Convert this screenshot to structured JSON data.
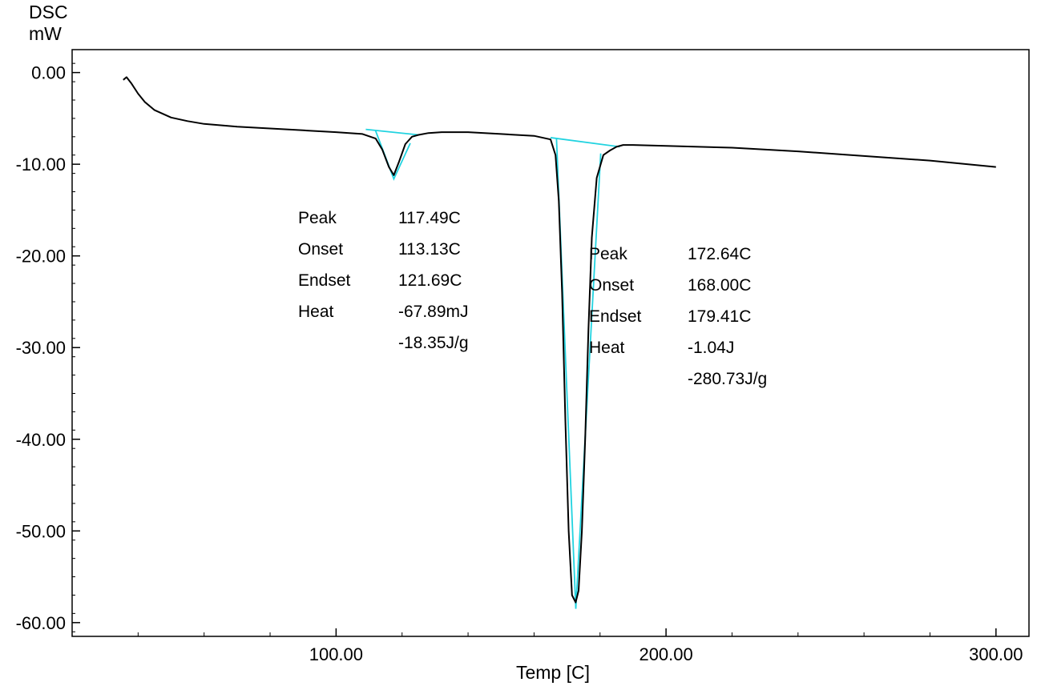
{
  "chart_data": {
    "type": "line",
    "ylabel_line1": "DSC",
    "ylabel_line2": "mW",
    "xlabel": "Temp  [C]",
    "xlim": [
      20,
      310
    ],
    "ylim": [
      -61.5,
      2.5
    ],
    "x_ticks": [
      100,
      200,
      300
    ],
    "x_tick_labels": [
      "100.00",
      "200.00",
      "300.00"
    ],
    "y_ticks": [
      0,
      -10,
      -20,
      -30,
      -40,
      -50,
      -60
    ],
    "y_tick_labels": [
      "0.00",
      "-10.00",
      "-20.00",
      "-30.00",
      "-40.00",
      "-50.00",
      "-60.00"
    ],
    "grid": false,
    "colors": {
      "curve": "#000000",
      "analysis": "#22d3e0"
    },
    "series": [
      {
        "x": [
          35.5,
          36.5,
          38,
          40,
          42,
          45,
          50,
          55,
          60,
          70,
          80,
          90,
          100,
          108,
          112,
          114,
          116,
          117.5,
          119,
          121,
          123,
          125,
          128,
          132,
          140,
          150,
          160,
          165,
          166.5,
          167.5,
          168.5,
          169.5,
          170.5,
          171.5,
          172.6,
          173.5,
          174.5,
          175.5,
          176.5,
          177.5,
          179,
          181,
          183,
          185,
          187,
          190,
          200,
          220,
          240,
          260,
          280,
          300
        ],
        "y": [
          -0.8,
          -0.5,
          -1.2,
          -2.3,
          -3.2,
          -4.1,
          -4.9,
          -5.3,
          -5.6,
          -5.9,
          -6.1,
          -6.3,
          -6.5,
          -6.7,
          -7.2,
          -8.4,
          -10.3,
          -11.2,
          -9.8,
          -7.8,
          -7.0,
          -6.8,
          -6.6,
          -6.5,
          -6.5,
          -6.7,
          -6.9,
          -7.3,
          -9.0,
          -14.0,
          -24.0,
          -38.0,
          -50.0,
          -57.0,
          -57.8,
          -56.5,
          -50.0,
          -40.0,
          -28.0,
          -18.0,
          -11.5,
          -9.0,
          -8.5,
          -8.1,
          -7.9,
          -7.9,
          -8.0,
          -8.2,
          -8.6,
          -9.1,
          -9.6,
          -10.3
        ]
      }
    ],
    "peaks": [
      {
        "onset": 113.13,
        "peak": 117.49,
        "endset": 121.69,
        "baseline_start": [
          109,
          -6.2
        ],
        "baseline_end": [
          125,
          -6.8
        ],
        "peak_depth": -11.6
      },
      {
        "onset": 168.0,
        "peak": 172.64,
        "endset": 179.41,
        "baseline_start": [
          165,
          -7.1
        ],
        "baseline_end": [
          186,
          -8.1
        ],
        "peak_depth": -58.5
      }
    ],
    "annotations": [
      {
        "labels": [
          "Peak",
          "Onset",
          "Endset",
          "Heat",
          ""
        ],
        "values": [
          "117.49C",
          "113.13C",
          "121.69C",
          "-67.89mJ",
          "-18.35J/g"
        ]
      },
      {
        "labels": [
          "Peak",
          "Onset",
          "Endset",
          "Heat",
          ""
        ],
        "values": [
          "172.64C",
          "168.00C",
          "179.41C",
          "-1.04J",
          "-280.73J/g"
        ]
      }
    ]
  }
}
